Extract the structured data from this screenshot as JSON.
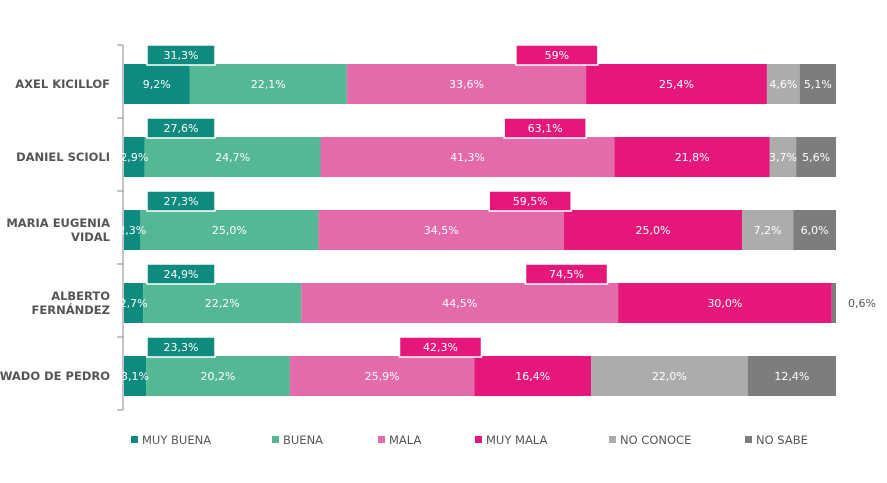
{
  "chart_data": {
    "type": "bar",
    "orientation": "horizontal",
    "stacked": "100%",
    "categories": [
      "AXEL KICILLOF",
      "DANIEL SCIOLI",
      "MARIA EUGENIA VIDAL",
      "ALBERTO FERNÁNDEZ",
      "WADO DE PEDRO"
    ],
    "series": [
      {
        "name": "MUY BUENA",
        "color": "#0f8a7e",
        "values": [
          9.2,
          2.9,
          2.3,
          2.7,
          3.1
        ],
        "labels": [
          "9,2%",
          "2,9%",
          "2,3%",
          "2,7%",
          "3,1%"
        ]
      },
      {
        "name": "BUENA",
        "color": "#54b894",
        "values": [
          22.1,
          24.7,
          25.0,
          22.2,
          20.2
        ],
        "labels": [
          "22,1%",
          "24,7%",
          "25,0%",
          "22,2%",
          "20,2%"
        ]
      },
      {
        "name": "MALA",
        "color": "#e46aa9",
        "values": [
          33.6,
          41.3,
          34.5,
          44.5,
          25.9
        ],
        "labels": [
          "33,6%",
          "41,3%",
          "34,5%",
          "44,5%",
          "25,9%"
        ]
      },
      {
        "name": "MUY MALA",
        "color": "#e5177a",
        "values": [
          25.4,
          21.8,
          25.0,
          30.0,
          16.4
        ],
        "labels": [
          "25,4%",
          "21,8%",
          "25,0%",
          "30,0%",
          "16,4%"
        ]
      },
      {
        "name": "NO CONOCE",
        "color": "#acacac",
        "values": [
          4.6,
          3.7,
          7.2,
          0.0,
          22.0
        ],
        "labels": [
          "4,6%",
          "3,7%",
          "7,2%",
          "",
          "22,0%"
        ]
      },
      {
        "name": "NO SABE",
        "color": "#7d7d7d",
        "values": [
          5.1,
          5.6,
          6.0,
          0.6,
          12.4
        ],
        "labels": [
          "5,1%",
          "5,6%",
          "6,0%",
          "0,6%",
          "12,4%"
        ]
      }
    ],
    "positive_totals": [
      "31,3%",
      "27,6%",
      "27,3%",
      "24,9%",
      "23,3%"
    ],
    "negative_totals": [
      "59%",
      "63,1%",
      "59,5%",
      "74,5%",
      "42,3%"
    ],
    "xlim": [
      0,
      100
    ],
    "legend_position": "bottom",
    "grid": false
  }
}
